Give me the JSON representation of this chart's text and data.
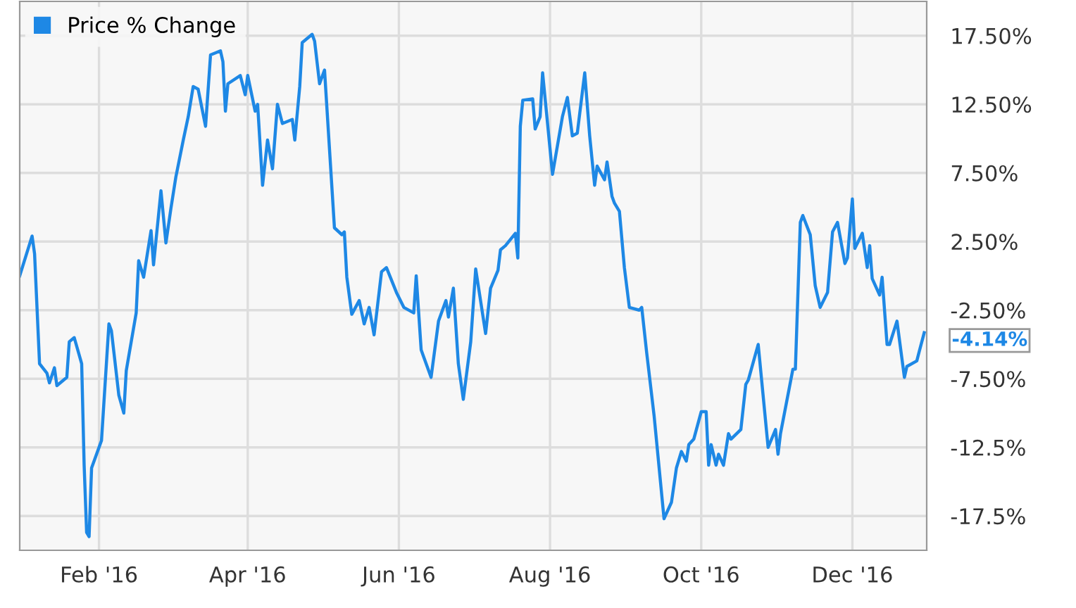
{
  "chart_data": {
    "type": "line",
    "x": [
      "2015-12-31",
      "2016-01-05",
      "2016-01-06",
      "2016-01-08",
      "2016-01-11",
      "2016-01-12",
      "2016-01-14",
      "2016-01-15",
      "2016-01-19",
      "2016-01-20",
      "2016-01-22",
      "2016-01-25",
      "2016-01-26",
      "2016-01-27",
      "2016-01-28",
      "2016-01-29",
      "2016-02-02",
      "2016-02-05",
      "2016-02-06",
      "2016-02-09",
      "2016-02-11",
      "2016-02-12",
      "2016-02-16",
      "2016-02-17",
      "2016-02-19",
      "2016-02-22",
      "2016-02-23",
      "2016-02-26",
      "2016-02-28",
      "2016-03-01",
      "2016-03-03",
      "2016-03-06",
      "2016-03-08",
      "2016-03-10",
      "2016-03-12",
      "2016-03-15",
      "2016-03-17",
      "2016-03-21",
      "2016-03-22",
      "2016-03-23",
      "2016-03-24",
      "2016-03-29",
      "2016-03-31",
      "2016-04-01",
      "2016-04-04",
      "2016-04-05",
      "2016-04-07",
      "2016-04-09",
      "2016-04-11",
      "2016-04-13",
      "2016-04-15",
      "2016-04-19",
      "2016-04-20",
      "2016-04-22",
      "2016-04-23",
      "2016-04-27",
      "2016-04-28",
      "2016-04-30",
      "2016-05-02",
      "2016-05-06",
      "2016-05-09",
      "2016-05-10",
      "2016-05-11",
      "2016-05-13",
      "2016-05-16",
      "2016-05-18",
      "2016-05-20",
      "2016-05-22",
      "2016-05-25",
      "2016-05-27",
      "2016-05-31",
      "2016-06-03",
      "2016-06-07",
      "2016-06-08",
      "2016-06-10",
      "2016-06-14",
      "2016-06-17",
      "2016-06-20",
      "2016-06-21",
      "2016-06-23",
      "2016-06-25",
      "2016-06-27",
      "2016-06-30",
      "2016-07-02",
      "2016-07-06",
      "2016-07-08",
      "2016-07-11",
      "2016-07-12",
      "2016-07-14",
      "2016-07-18",
      "2016-07-19",
      "2016-07-20",
      "2016-07-21",
      "2016-07-25",
      "2016-07-26",
      "2016-07-28",
      "2016-07-29",
      "2016-08-02",
      "2016-08-06",
      "2016-08-08",
      "2016-08-10",
      "2016-08-12",
      "2016-08-15",
      "2016-08-17",
      "2016-08-19",
      "2016-08-20",
      "2016-08-23",
      "2016-08-24",
      "2016-08-26",
      "2016-08-27",
      "2016-08-29",
      "2016-08-31",
      "2016-09-02",
      "2016-09-06",
      "2016-09-07",
      "2016-09-09",
      "2016-09-12",
      "2016-09-16",
      "2016-09-19",
      "2016-09-21",
      "2016-09-23",
      "2016-09-25",
      "2016-09-26",
      "2016-09-28",
      "2016-10-01",
      "2016-10-03",
      "2016-10-04",
      "2016-10-05",
      "2016-10-07",
      "2016-10-08",
      "2016-10-10",
      "2016-10-12",
      "2016-10-13",
      "2016-10-17",
      "2016-10-19",
      "2016-10-20",
      "2016-10-24",
      "2016-10-28",
      "2016-10-31",
      "2016-11-01",
      "2016-11-02",
      "2016-11-07",
      "2016-11-08",
      "2016-11-10",
      "2016-11-11",
      "2016-11-14",
      "2016-11-16",
      "2016-11-18",
      "2016-11-21",
      "2016-11-23",
      "2016-11-25",
      "2016-11-28",
      "2016-11-29",
      "2016-12-01",
      "2016-12-02",
      "2016-12-05",
      "2016-12-07",
      "2016-12-08",
      "2016-12-09",
      "2016-12-12",
      "2016-12-13",
      "2016-12-15",
      "2016-12-16",
      "2016-12-19",
      "2016-12-22",
      "2016-12-23",
      "2016-12-27",
      "2016-12-28",
      "2016-12-30"
    ],
    "series": [
      {
        "name": "Price % Change",
        "color": "#1e88e5",
        "values": [
          0,
          2.9,
          1.6,
          -6.4,
          -7.1,
          -7.8,
          -6.7,
          -8,
          -7.4,
          -4.8,
          -4.5,
          -6.4,
          -13.8,
          -18.7,
          -19,
          -14,
          -12,
          -3.5,
          -4,
          -8.7,
          -10,
          -6.9,
          -2.7,
          1.1,
          -0.1,
          3.3,
          0.8,
          6.2,
          2.4,
          4.9,
          7.2,
          9.9,
          11.6,
          13.8,
          13.6,
          10.9,
          16.1,
          16.4,
          15.6,
          12,
          14,
          14.6,
          13.2,
          14.6,
          12,
          12.5,
          6.6,
          9.9,
          7.8,
          12.5,
          11.1,
          11.4,
          9.9,
          13.8,
          17,
          17.6,
          17.1,
          14,
          15,
          3.5,
          3,
          3.2,
          -0.1,
          -2.8,
          -1.8,
          -3.5,
          -2.3,
          -4.3,
          0.3,
          0.6,
          -1.2,
          -2.3,
          -2.7,
          0,
          -5.4,
          -7.4,
          -3.3,
          -1.8,
          -3,
          -0.9,
          -6.4,
          -9,
          -4.8,
          0.5,
          -4.2,
          -0.9,
          0.4,
          1.9,
          2.2,
          3.1,
          1.3,
          10.9,
          12.8,
          12.9,
          10.7,
          11.6,
          14.8,
          7.4,
          11.6,
          13,
          10.2,
          10.4,
          14.8,
          10.2,
          6.6,
          8,
          7,
          8.3,
          5.8,
          5.3,
          4.7,
          0.6,
          -2.3,
          -2.5,
          -2.3,
          -5.6,
          -10.2,
          -17.7,
          -16.5,
          -14,
          -12.8,
          -13.5,
          -12.3,
          -11.9,
          -9.9,
          -9.9,
          -13.8,
          -12.3,
          -13.8,
          -13,
          -13.8,
          -11.5,
          -11.9,
          -11.2,
          -7.9,
          -7.6,
          -5,
          -12.5,
          -11.2,
          -13,
          -11.5,
          -6.8,
          -6.8,
          3.9,
          4.4,
          3,
          -0.7,
          -2.3,
          -1.2,
          3.2,
          3.9,
          0.9,
          1.3,
          5.6,
          2,
          3.1,
          0.6,
          2.2,
          -0.2,
          -1.4,
          -0.1,
          -5,
          -5,
          -3.3,
          -7.4,
          -6.6,
          -6.2,
          -5.5,
          -4.14
        ]
      }
    ],
    "xlim": [
      "2015-12-31",
      "2016-12-31"
    ],
    "xticks": [
      {
        "value": "2016-02-01",
        "label": "Feb '16"
      },
      {
        "value": "2016-04-01",
        "label": "Apr '16"
      },
      {
        "value": "2016-06-01",
        "label": "Jun '16"
      },
      {
        "value": "2016-08-01",
        "label": "Aug '16"
      },
      {
        "value": "2016-10-01",
        "label": "Oct '16"
      },
      {
        "value": "2016-12-01",
        "label": "Dec '16"
      }
    ],
    "ylim": [
      -20,
      20
    ],
    "yticks": [
      {
        "value": 17.5,
        "label": "17.50%"
      },
      {
        "value": 12.5,
        "label": "12.50%"
      },
      {
        "value": 7.5,
        "label": "7.50%"
      },
      {
        "value": 2.5,
        "label": "2.50%"
      },
      {
        "value": -2.5,
        "label": "-2.50%"
      },
      {
        "value": -7.5,
        "label": "-7.50%"
      },
      {
        "value": -12.5,
        "label": "-12.5%"
      },
      {
        "value": -17.5,
        "label": "-17.5%"
      }
    ],
    "annotations": [
      {
        "text": "-4.14%",
        "x": "2016-12-30",
        "y": -4.14
      }
    ],
    "grid": true,
    "legend": "top left",
    "marker": "none",
    "line_style": "solid"
  }
}
